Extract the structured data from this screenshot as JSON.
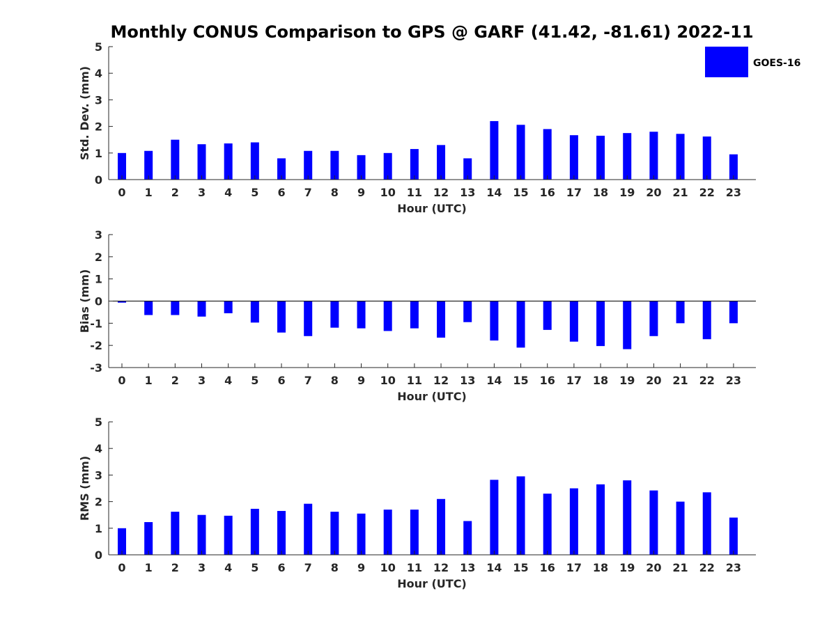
{
  "title": "Monthly CONUS Comparison to GPS @ GARF (41.42, -81.61) 2022-11",
  "colors": {
    "bar": "#0000ff",
    "axis": "#262626"
  },
  "legend": {
    "label": "GOES-16",
    "placement": "top-right"
  },
  "chart_data": [
    {
      "type": "bar",
      "categories": [
        "0",
        "1",
        "2",
        "3",
        "4",
        "5",
        "6",
        "7",
        "8",
        "9",
        "10",
        "11",
        "12",
        "13",
        "14",
        "15",
        "16",
        "17",
        "18",
        "19",
        "20",
        "21",
        "22",
        "23"
      ],
      "series": [
        {
          "name": "GOES-16",
          "values": [
            1.0,
            1.08,
            1.5,
            1.33,
            1.36,
            1.4,
            0.8,
            1.08,
            1.08,
            0.92,
            1.0,
            1.15,
            1.3,
            0.8,
            2.2,
            2.06,
            1.9,
            1.67,
            1.65,
            1.75,
            1.8,
            1.72,
            1.62,
            0.95
          ]
        }
      ],
      "xlabel": "Hour (UTC)",
      "ylabel": "Std. Dev. (mm)",
      "ylim": [
        0,
        5
      ],
      "yticks": [
        "0",
        "1",
        "2",
        "3",
        "4",
        "5"
      ],
      "grid": false
    },
    {
      "type": "bar",
      "categories": [
        "0",
        "1",
        "2",
        "3",
        "4",
        "5",
        "6",
        "7",
        "8",
        "9",
        "10",
        "11",
        "12",
        "13",
        "14",
        "15",
        "16",
        "17",
        "18",
        "19",
        "20",
        "21",
        "22",
        "23"
      ],
      "series": [
        {
          "name": "GOES-16",
          "values": [
            -0.07,
            -0.63,
            -0.63,
            -0.7,
            -0.55,
            -0.97,
            -1.42,
            -1.58,
            -1.2,
            -1.23,
            -1.35,
            -1.23,
            -1.65,
            -0.95,
            -1.78,
            -2.1,
            -1.3,
            -1.83,
            -2.03,
            -2.17,
            -1.58,
            -1.0,
            -1.72,
            -1.0
          ]
        }
      ],
      "xlabel": "Hour (UTC)",
      "ylabel": "Bias (mm)",
      "ylim": [
        -3,
        3
      ],
      "yticks": [
        "-3",
        "-2",
        "-1",
        "0",
        "1",
        "2",
        "3"
      ],
      "zero_line": true,
      "grid": false
    },
    {
      "type": "bar",
      "categories": [
        "0",
        "1",
        "2",
        "3",
        "4",
        "5",
        "6",
        "7",
        "8",
        "9",
        "10",
        "11",
        "12",
        "13",
        "14",
        "15",
        "16",
        "17",
        "18",
        "19",
        "20",
        "21",
        "22",
        "23"
      ],
      "series": [
        {
          "name": "GOES-16",
          "values": [
            1.0,
            1.23,
            1.62,
            1.5,
            1.47,
            1.73,
            1.65,
            1.92,
            1.62,
            1.55,
            1.7,
            1.7,
            2.1,
            1.27,
            2.82,
            2.95,
            2.3,
            2.5,
            2.65,
            2.8,
            2.42,
            2.0,
            2.35,
            1.4
          ]
        }
      ],
      "xlabel": "Hour (UTC)",
      "ylabel": "RMS (mm)",
      "ylim": [
        0,
        5
      ],
      "yticks": [
        "0",
        "1",
        "2",
        "3",
        "4",
        "5"
      ],
      "grid": false
    }
  ]
}
